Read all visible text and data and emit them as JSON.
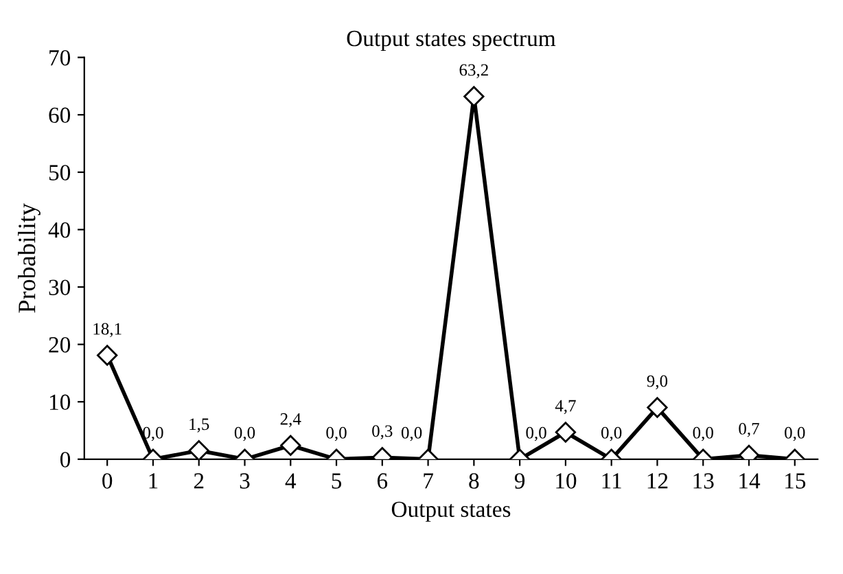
{
  "chart_data": {
    "type": "line",
    "title": "Output states spectrum",
    "xlabel": "Output states",
    "ylabel": "Probability",
    "categories": [
      "0",
      "1",
      "2",
      "3",
      "4",
      "5",
      "6",
      "7",
      "8",
      "9",
      "10",
      "11",
      "12",
      "13",
      "14",
      "15"
    ],
    "values": [
      18.1,
      0,
      1.5,
      0,
      2.4,
      0,
      0.3,
      0,
      63.2,
      0,
      4.7,
      0,
      9.0,
      0,
      0.7,
      0
    ],
    "value_labels": [
      "18,1",
      "0,0",
      "1,5",
      "0,0",
      "2,4",
      "0,0",
      "0,3",
      "0,0",
      "63,2",
      "0,0",
      "4,7",
      "0,0",
      "9,0",
      "0,0",
      "0,7",
      "0,0"
    ],
    "color": "#000000",
    "marker": "diamond",
    "line_style": "solid",
    "ylim": [
      0,
      70
    ],
    "yticks": [
      0,
      10,
      20,
      30,
      40,
      50,
      60,
      70
    ],
    "grid": false,
    "legend": false
  }
}
